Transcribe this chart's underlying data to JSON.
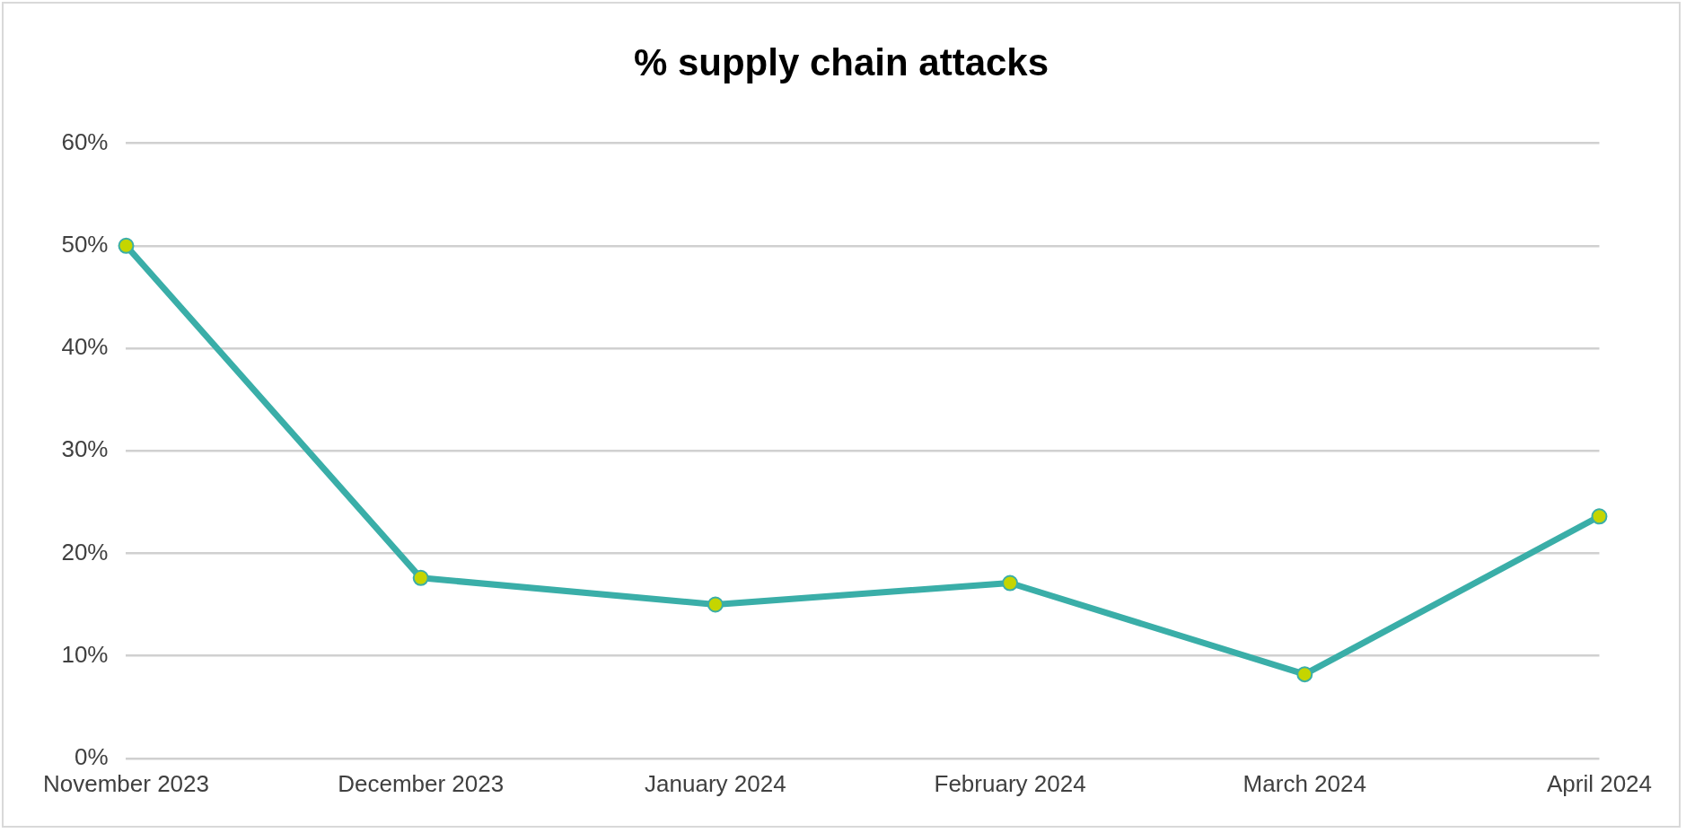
{
  "chart_data": {
    "type": "line",
    "title": "% supply chain attacks",
    "categories": [
      "November 2023",
      "December 2023",
      "January 2024",
      "February 2024",
      "March 2024",
      "April 2024"
    ],
    "series": [
      {
        "color": "#3aaea8",
        "values": [
          50,
          17.6,
          15.0,
          17.1,
          8.2,
          23.6
        ]
      }
    ],
    "ylim": [
      0,
      60
    ],
    "yticks": [
      {
        "value": 0,
        "label": "0%"
      },
      {
        "value": 10,
        "label": "10%"
      },
      {
        "value": 20,
        "label": "20%"
      },
      {
        "value": 30,
        "label": "30%"
      },
      {
        "value": 40,
        "label": "40%"
      },
      {
        "value": 50,
        "label": "50%"
      },
      {
        "value": 60,
        "label": "60%"
      }
    ],
    "grid": "y",
    "legend": false,
    "marker": "circle",
    "line_style": "solid"
  }
}
